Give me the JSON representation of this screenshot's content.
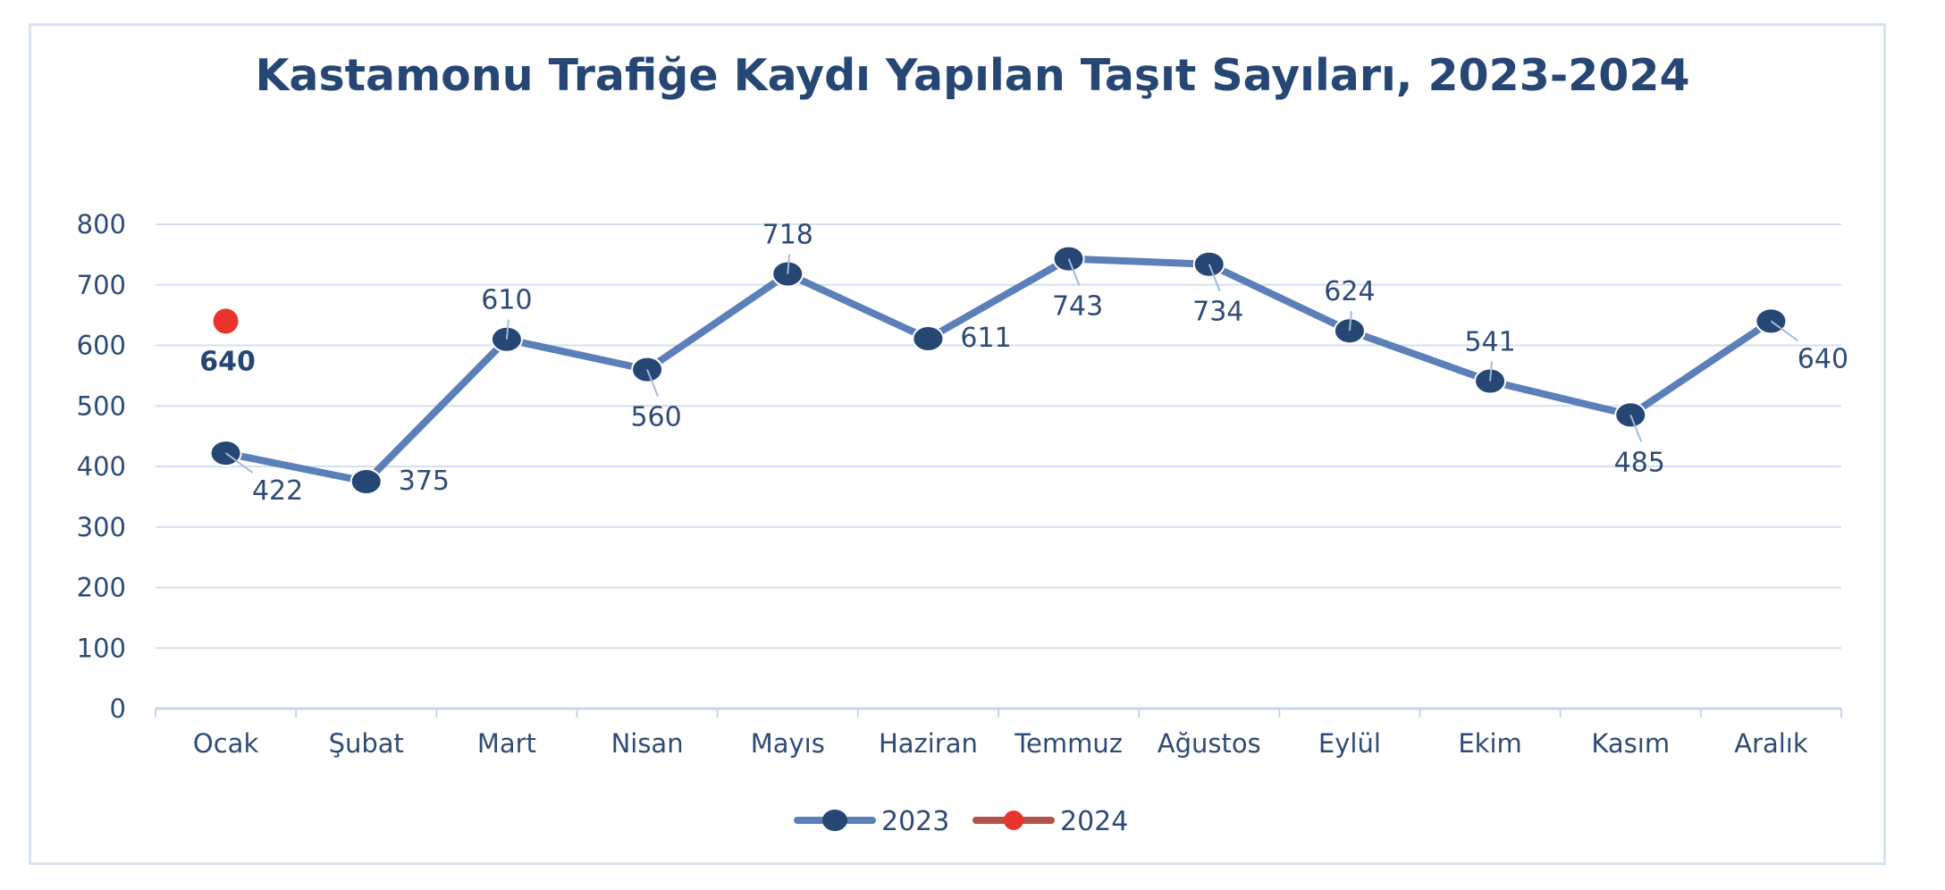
{
  "chart_data": {
    "type": "line",
    "title": "Kastamonu Trafiğe Kaydı Yapılan Taşıt Sayıları, 2023-2024",
    "xlabel": "",
    "ylabel": "",
    "categories": [
      "Ocak",
      "Şubat",
      "Mart",
      "Nisan",
      "Mayıs",
      "Haziran",
      "Temmuz",
      "Ağustos",
      "Eylül",
      "Ekim",
      "Kasım",
      "Aralık"
    ],
    "ylim": [
      0,
      800
    ],
    "yticks": [
      0,
      100,
      200,
      300,
      400,
      500,
      600,
      700,
      800
    ],
    "grid": true,
    "legend_position": "bottom",
    "series": [
      {
        "name": "2023",
        "color": "#5b7fb9",
        "marker_color": "#264674",
        "values": [
          422,
          375,
          610,
          560,
          718,
          611,
          743,
          734,
          624,
          541,
          485,
          640
        ]
      },
      {
        "name": "2024",
        "color": "#b4514b",
        "marker_color": "#e8352b",
        "values": [
          640,
          null,
          null,
          null,
          null,
          null,
          null,
          null,
          null,
          null,
          null,
          null
        ]
      }
    ]
  }
}
